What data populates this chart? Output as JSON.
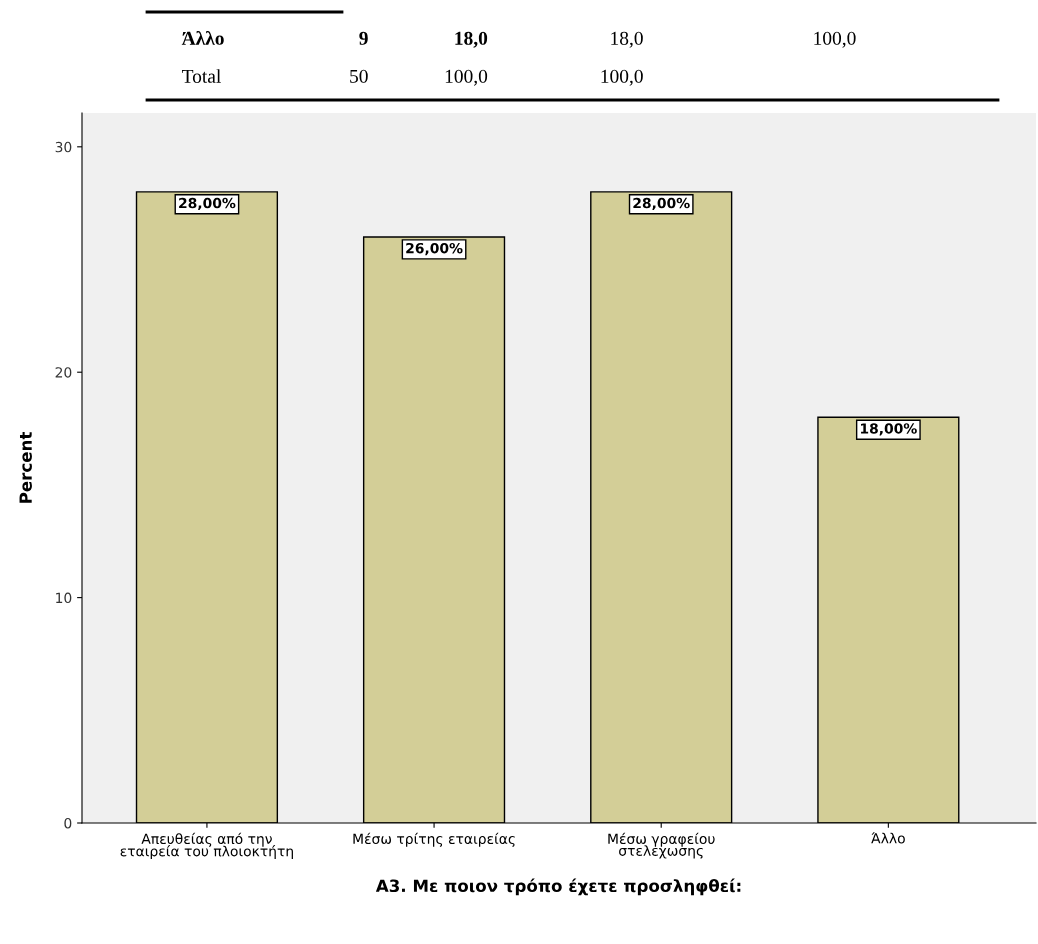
{
  "chart_data": {
    "type": "bar",
    "xlabel": "A3. Με ποιον τρόπο έχετε προσληφθεί:",
    "ylabel": "Percent",
    "categories": [
      "Απευθείας από την\nεταιρεία του πλοιοκτήτη",
      "Μέσω τρίτης εταιρείας",
      "Μέσω γραφείου\nστελεχωσης",
      "Άλλο"
    ],
    "values": [
      28,
      26,
      28,
      18
    ],
    "value_labels": [
      "28,00%",
      "26,00%",
      "28,00%",
      "18,00%"
    ],
    "color": "#d3ce97",
    "ylim": [
      0,
      31.5
    ],
    "yticks": [
      0,
      10,
      20,
      30
    ],
    "grid": false,
    "annotations": [
      "Άλλο",
      "9",
      "18,0",
      "18,0",
      "100,0",
      "Total",
      "50",
      "100,0",
      "100,0"
    ]
  }
}
